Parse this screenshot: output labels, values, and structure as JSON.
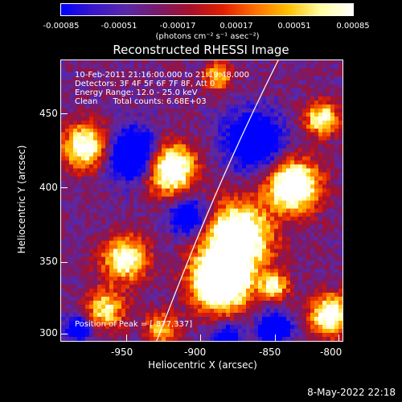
{
  "colorbar": {
    "ticks": [
      "-0.00085",
      "-0.00051",
      "-0.00017",
      "0.00017",
      "0.00051",
      "0.00085"
    ],
    "units": "(photons cm⁻² s⁻¹ asec⁻²)"
  },
  "title": "Reconstructed RHESSI Image",
  "info": {
    "line1": "10-Feb-2011 21:16:00.000 to 21:19:48.000",
    "line2": "Detectors: 3F 4F 5F 6F 7F 8F, Att 0",
    "line3": "Energy Range: 12.0 - 25.0 keV",
    "line4": "Clean      Total counts: 6.68E+03",
    "peak": "Position of Peak = [-877,337]"
  },
  "axes": {
    "x_ticks": [
      "-950",
      "-900",
      "-850",
      "-800"
    ],
    "y_ticks": [
      "450",
      "400",
      "350",
      "300"
    ],
    "xlabel": "Heliocentric X (arcsec)",
    "ylabel": "Heliocentric Y (arcsec)",
    "xlim": [
      -980,
      -790
    ],
    "ylim": [
      295,
      485
    ]
  },
  "timestamp": "8-May-2022 22:18",
  "colors": {
    "colormap": [
      "#0000ff",
      "#3a18c8",
      "#5a28a8",
      "#7a1a6a",
      "#a8102a",
      "#e02000",
      "#ff7000",
      "#ffc000",
      "#ffffa0",
      "#ffffff"
    ]
  }
}
